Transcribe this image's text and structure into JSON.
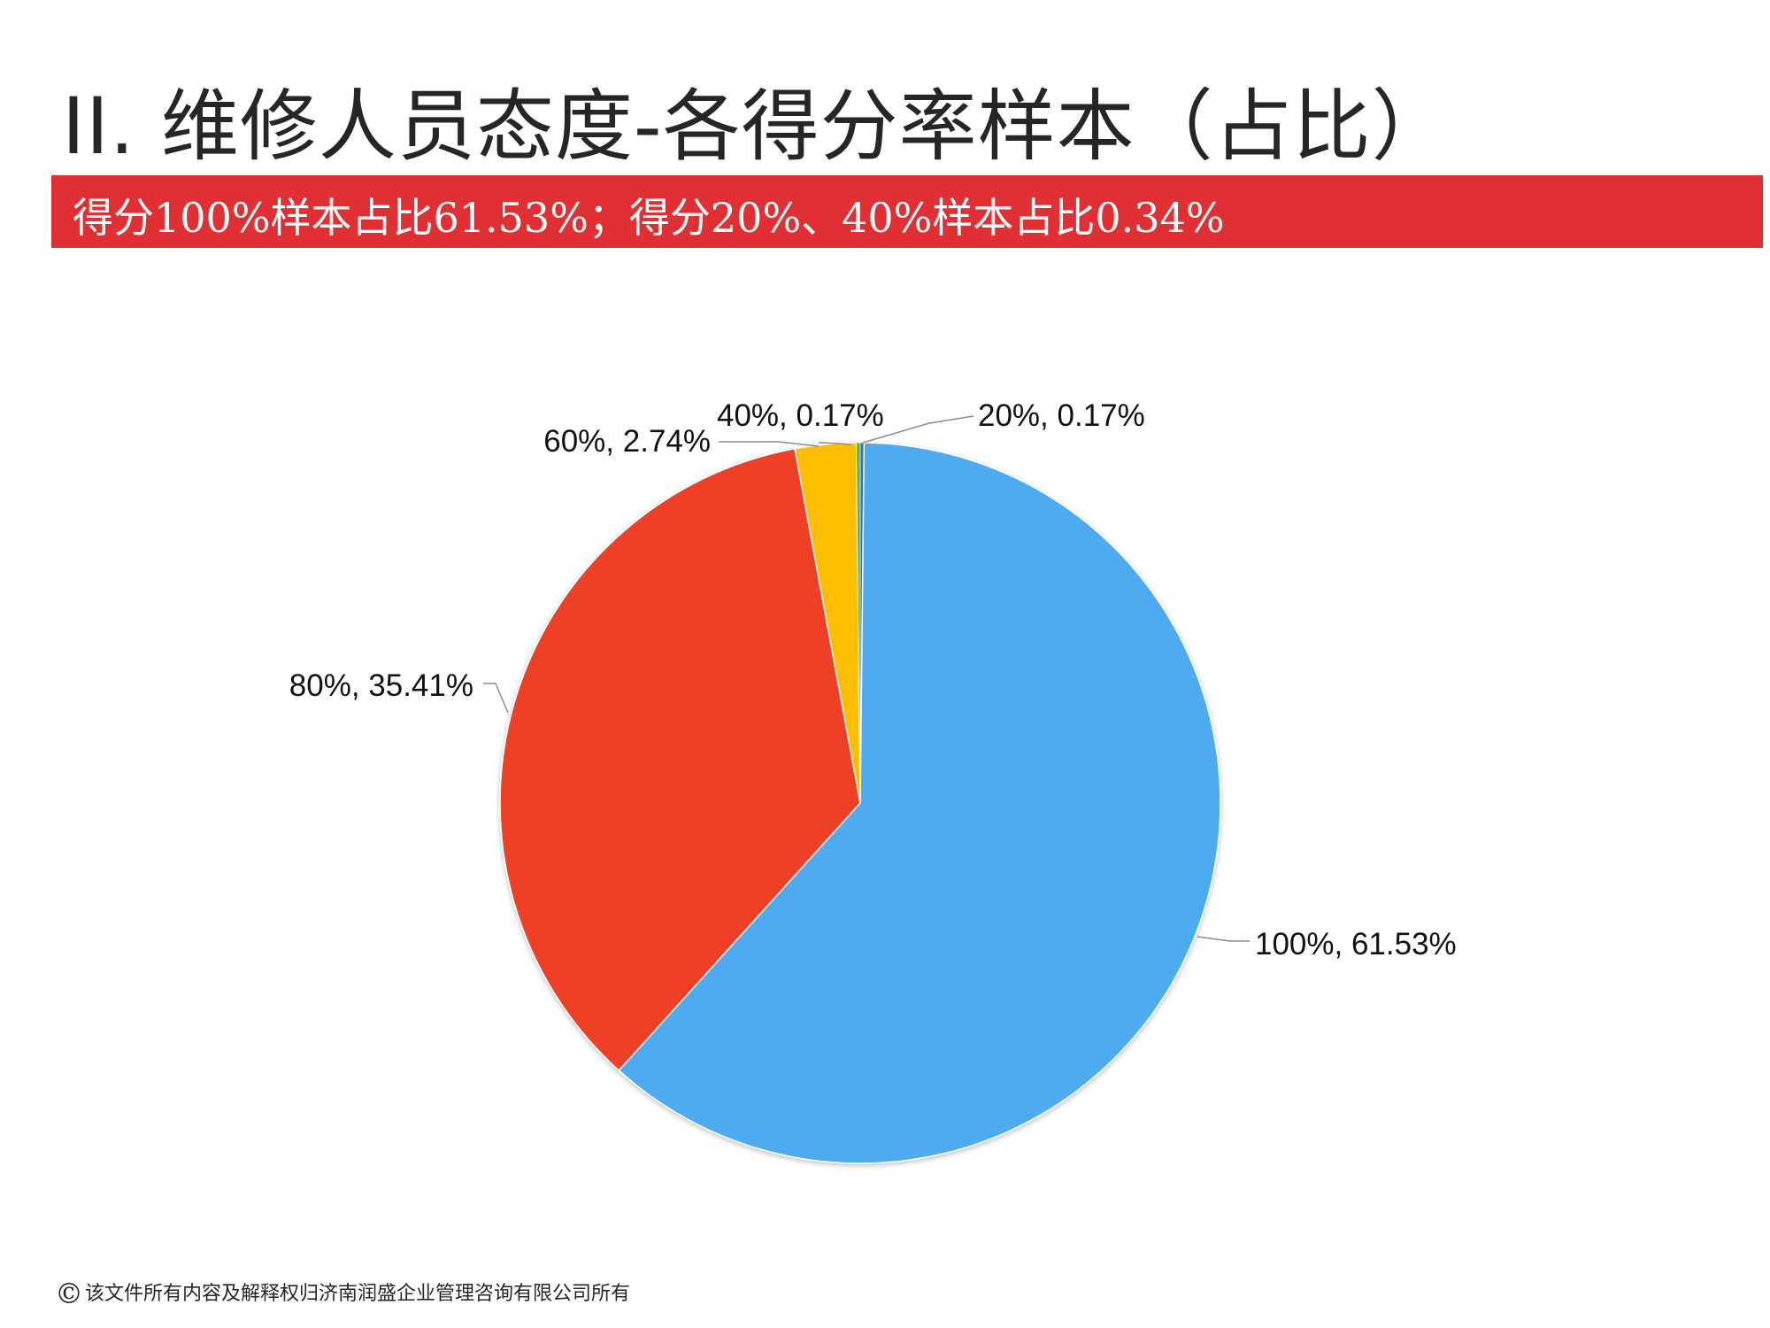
{
  "slide": {
    "title": "II.  维修人员态度-各得分率样本（占比）",
    "banner": "得分100%样本占比61.53%；得分20%、40%样本占比0.34%",
    "footer_symbol": "©",
    "footer": "该文件所有内容及解释权归济南润盛企业管理咨询有限公司所有"
  },
  "colors": {
    "banner": "#E03034",
    "slice_100": "#4FABF0",
    "slice_80": "#EE4025",
    "slice_60": "#FEBE00",
    "slice_40": "#70AD47",
    "slice_20": "#2E75B6"
  },
  "chart_data": {
    "type": "pie",
    "start_angle_deg": 0,
    "direction": "clockwise",
    "slices": [
      {
        "label": "20%",
        "value": 0.17,
        "display": "20%, 0.17%",
        "color": "#2E75B6"
      },
      {
        "label": "100%",
        "value": 61.53,
        "display": "100%, 61.53%",
        "color": "#4FABF0"
      },
      {
        "label": "80%",
        "value": 35.41,
        "display": "80%, 35.41%",
        "color": "#EE4025"
      },
      {
        "label": "60%",
        "value": 2.74,
        "display": "60%, 2.74%",
        "color": "#FEBE00"
      },
      {
        "label": "40%",
        "value": 0.17,
        "display": "40%, 0.17%",
        "color": "#70AD47"
      }
    ]
  }
}
